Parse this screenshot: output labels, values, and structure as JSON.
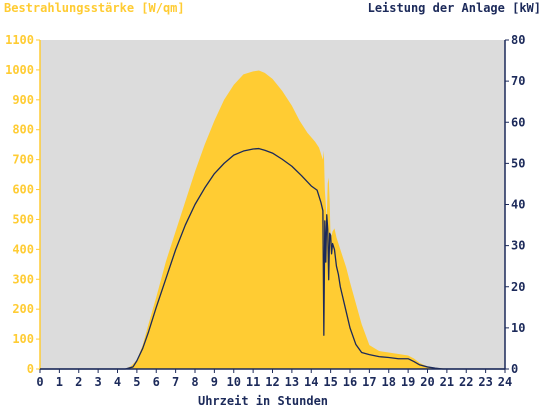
{
  "chart_data": {
    "type": "area",
    "left_axis_title": "Bestrahlungsstärke [W/qm]",
    "right_axis_title": "Leistung der Anlage [kW]",
    "xlabel": "Uhrzeit in Stunden",
    "xlim": [
      0,
      24
    ],
    "ylim_left": [
      0,
      1100
    ],
    "ylim_right": [
      0,
      80
    ],
    "x_ticks": [
      0,
      1,
      2,
      3,
      4,
      5,
      6,
      7,
      8,
      9,
      10,
      11,
      12,
      13,
      14,
      15,
      16,
      17,
      18,
      19,
      20,
      21,
      22,
      23,
      24
    ],
    "y_left_ticks": [
      0,
      100,
      200,
      300,
      400,
      500,
      600,
      700,
      800,
      900,
      1000,
      1100
    ],
    "y_right_ticks": [
      0,
      10,
      20,
      30,
      40,
      50,
      60,
      70,
      80
    ],
    "grid": false,
    "colors": {
      "plot_background": "#dcdcdc",
      "irradiance_fill": "#ffcc33",
      "power_line": "#1c2a5a",
      "left_axis_text": "#ffcc33",
      "right_axis_text": "#1c2a5a",
      "x_axis_text": "#1c2a5a"
    },
    "series": [
      {
        "axis": "left",
        "style": "area",
        "x": [
          0,
          4.4,
          4.7,
          5.0,
          5.3,
          5.6,
          6.0,
          6.5,
          7.0,
          7.5,
          8.0,
          8.5,
          9.0,
          9.5,
          10.0,
          10.5,
          11.0,
          11.3,
          11.6,
          12.0,
          12.5,
          13.0,
          13.4,
          13.8,
          14.2,
          14.4,
          14.5,
          14.6,
          14.65,
          14.7,
          14.75,
          14.8,
          14.85,
          14.9,
          14.95,
          15.0,
          15.1,
          15.2,
          15.3,
          15.4,
          15.5,
          15.6,
          15.8,
          16.0,
          16.3,
          16.6,
          17.0,
          17.5,
          18.0,
          18.5,
          19.0,
          19.3,
          19.6,
          20.0,
          20.4,
          20.8,
          21.2,
          24
        ],
        "values": [
          0,
          0,
          10,
          30,
          80,
          150,
          240,
          360,
          460,
          560,
          660,
          750,
          830,
          900,
          950,
          985,
          995,
          998,
          990,
          970,
          930,
          880,
          830,
          790,
          760,
          740,
          720,
          700,
          730,
          600,
          550,
          500,
          620,
          640,
          560,
          430,
          460,
          470,
          440,
          420,
          400,
          380,
          340,
          290,
          220,
          150,
          80,
          60,
          55,
          50,
          45,
          35,
          20,
          8,
          4,
          2,
          0,
          0
        ]
      },
      {
        "axis": "right",
        "style": "line",
        "x": [
          0,
          4.4,
          4.8,
          5.0,
          5.3,
          5.6,
          6.0,
          6.5,
          7.0,
          7.5,
          8.0,
          8.5,
          9.0,
          9.5,
          10.0,
          10.5,
          11.0,
          11.3,
          11.6,
          12.0,
          12.5,
          13.0,
          13.5,
          14.0,
          14.3,
          14.5,
          14.6,
          14.65,
          14.7,
          14.75,
          14.8,
          14.85,
          14.9,
          14.95,
          15.0,
          15.05,
          15.1,
          15.2,
          15.3,
          15.4,
          15.5,
          15.6,
          15.8,
          16.0,
          16.3,
          16.6,
          17.0,
          17.5,
          18.0,
          18.5,
          19.0,
          19.3,
          19.6,
          20.0,
          20.4,
          20.8,
          21.2,
          24
        ],
        "values": [
          0,
          0,
          0.5,
          2,
          5,
          9,
          15,
          22,
          29,
          35,
          40,
          44,
          47.5,
          50,
          52,
          53,
          53.5,
          53.6,
          53.2,
          52.5,
          51,
          49.3,
          47,
          44.5,
          43.5,
          40.5,
          38.5,
          8.2,
          36,
          26,
          37.5,
          34,
          21.7,
          33,
          32.5,
          28,
          30.5,
          29,
          25,
          23,
          20,
          18,
          14,
          10,
          6,
          4,
          3.5,
          3,
          2.8,
          2.5,
          2.5,
          1.8,
          1,
          0.5,
          0.2,
          0,
          0,
          0
        ]
      }
    ]
  }
}
